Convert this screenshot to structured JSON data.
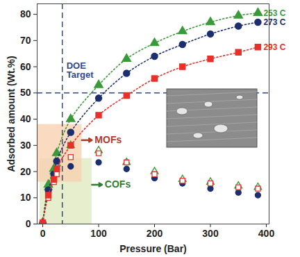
{
  "chart_data": {
    "type": "line",
    "x_label": "Pressure (Bar)",
    "y_label": "Adsorbed amount (Wt.%)",
    "x": [
      0,
      10,
      20,
      25,
      50,
      100,
      150,
      200,
      250,
      300,
      350,
      385
    ],
    "xlim": [
      -10,
      405
    ],
    "ylim": [
      0,
      84
    ],
    "xticks": [
      0,
      100,
      200,
      300,
      400
    ],
    "yticks": [
      0,
      10,
      20,
      30,
      40,
      50,
      60,
      70,
      80
    ],
    "grid": false,
    "series": [
      {
        "name": "253 C",
        "color": "#3a9a3a",
        "marker": "triangle",
        "line_style": "dotted",
        "values": [
          0.5,
          15,
          21,
          27,
          40,
          53,
          63,
          69,
          73.5,
          77,
          79.5,
          80.5
        ],
        "excess": [
          0.5,
          14,
          20,
          23,
          30,
          28,
          23.5,
          20,
          17,
          16,
          14.5,
          14
        ]
      },
      {
        "name": "273 C",
        "color": "#1c2e6e",
        "marker": "circle",
        "line_style": "dotted",
        "values": [
          0.5,
          13,
          19,
          24,
          35,
          48,
          57.5,
          64,
          68.5,
          72.5,
          75.5,
          77
        ],
        "excess": [
          0.5,
          12,
          18,
          21,
          22,
          23.5,
          21,
          17.5,
          15.5,
          13.5,
          12,
          11
        ]
      },
      {
        "name": "293 C",
        "color": "#e8302a",
        "marker": "square",
        "line_style": "dotted",
        "values": [
          0.5,
          11,
          17,
          21,
          30,
          41.5,
          49,
          55.5,
          60,
          63,
          65.5,
          67.5
        ],
        "excess": [
          0.5,
          10,
          16,
          19,
          25.5,
          27,
          23.5,
          19,
          16.5,
          15.5,
          14,
          13.5
        ]
      }
    ],
    "target": {
      "label": "DOE Target",
      "x": 35,
      "y": 50,
      "color": "#2e4a8a"
    },
    "regions": [
      {
        "label": "MOFs",
        "x": [
          -10,
          70
        ],
        "y": [
          16,
          38
        ],
        "color": "#f8cfae",
        "text_color": "#b03a2e"
      },
      {
        "label": "COFs",
        "x": [
          -5,
          88
        ],
        "y": [
          0,
          25
        ],
        "color": "#dfe8bd",
        "text_color": "#2e7d32"
      }
    ]
  }
}
